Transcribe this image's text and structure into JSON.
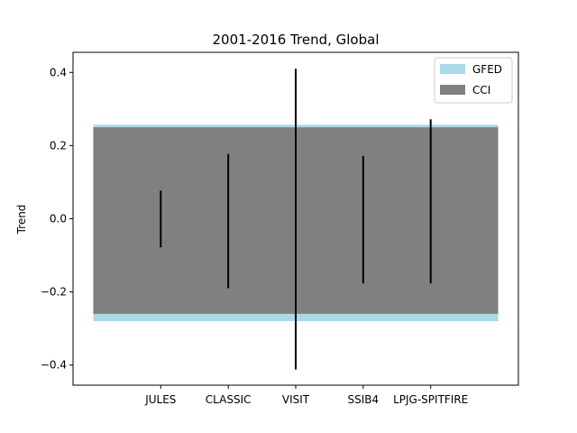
{
  "chart_data": {
    "type": "range_band_errorbar",
    "title": "2001-2016 Trend, Global",
    "xlabel": "",
    "ylabel": "Trend",
    "ylim": [
      -0.455,
      0.455
    ],
    "yticks": [
      -0.4,
      -0.2,
      0.0,
      0.2,
      0.4
    ],
    "ytick_labels": [
      "−0.4",
      "−0.2",
      "0.0",
      "0.2",
      "0.4"
    ],
    "x_positions": [
      1,
      2,
      3,
      4,
      5
    ],
    "xlim": [
      -0.3,
      6.3
    ],
    "categories": [
      "JULES",
      "CLASSIC",
      "VISIT",
      "SSIB4",
      "LPJG-SPITFIRE"
    ],
    "bands": [
      {
        "name": "GFED",
        "x_range": [
          0,
          6
        ],
        "y_range": [
          -0.28,
          0.257
        ],
        "color": "#add8e6"
      },
      {
        "name": "CCI",
        "x_range": [
          0,
          6
        ],
        "y_range": [
          -0.26,
          0.25
        ],
        "color": "#808080"
      }
    ],
    "ranges": [
      {
        "model": "JULES",
        "low": -0.078,
        "high": 0.077
      },
      {
        "model": "CLASSIC",
        "low": -0.19,
        "high": 0.177
      },
      {
        "model": "VISIT",
        "low": -0.412,
        "high": 0.41
      },
      {
        "model": "SSIB4",
        "low": -0.177,
        "high": 0.172
      },
      {
        "model": "LPJG-SPITFIRE",
        "low": -0.177,
        "high": 0.272
      }
    ],
    "legend": {
      "position": "top-right",
      "entries": [
        "GFED",
        "CCI"
      ]
    },
    "grid": false
  }
}
